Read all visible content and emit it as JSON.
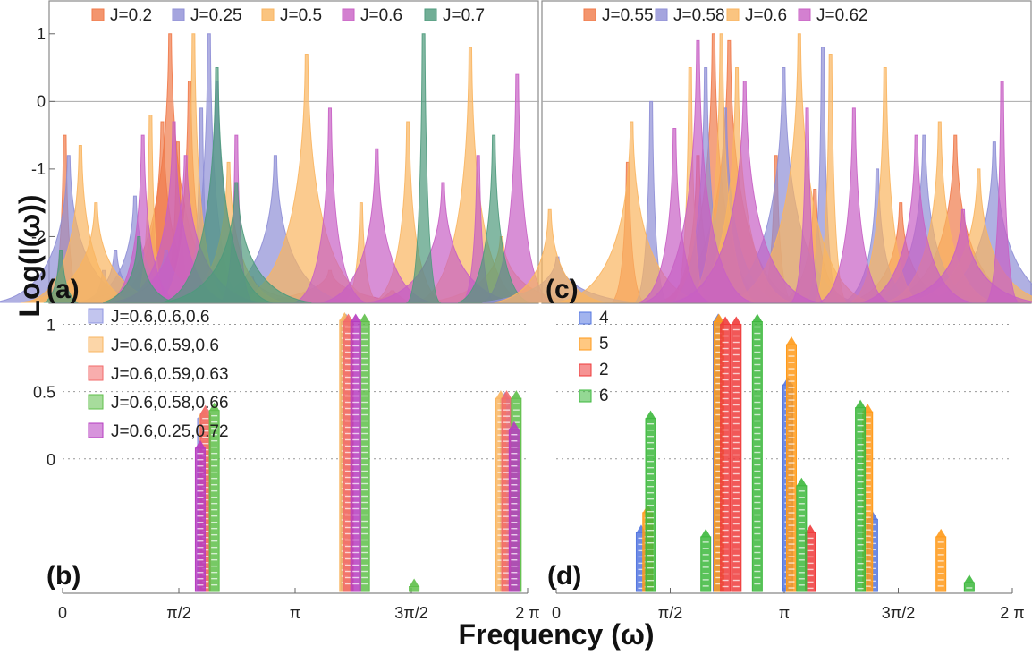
{
  "figure": {
    "ylabel": "Log(I(ω))",
    "xlabel": "Frequency (ω)"
  },
  "chart_data": [
    {
      "panel": "a",
      "type": "area",
      "label": "(a)",
      "xlim": [
        0,
        6.2832
      ],
      "ylim": [
        -3,
        1.5
      ],
      "yticks": [
        "1",
        "0",
        "-1",
        "-2"
      ],
      "ytick_values": [
        1,
        0,
        -1,
        -2
      ],
      "legend": [
        "J=0.2",
        "J=0.25",
        "J=0.5",
        "J=0.6",
        "J=0.7"
      ],
      "series": [
        {
          "name": "J=0.2",
          "color": "#f07a4a",
          "peaks": [
            [
              0.2,
              -0.5
            ],
            [
              0.85,
              -2.8
            ],
            [
              1.45,
              -0.3
            ],
            [
              1.55,
              1.0
            ],
            [
              1.65,
              -0.6
            ],
            [
              1.8,
              0.3
            ],
            [
              2.6,
              -2.6
            ],
            [
              3.6,
              -2.5
            ],
            [
              4.4,
              -2.8
            ]
          ]
        },
        {
          "name": "J=0.25",
          "color": "#8f8fd6",
          "peaks": [
            [
              0.25,
              -0.8
            ],
            [
              0.7,
              -2.5
            ],
            [
              0.85,
              -2.2
            ],
            [
              1.1,
              -1.4
            ],
            [
              1.5,
              -2.2
            ],
            [
              1.95,
              -0.1
            ],
            [
              2.05,
              1.0
            ],
            [
              2.15,
              0.3
            ],
            [
              2.9,
              -0.8
            ]
          ]
        },
        {
          "name": "J=0.5",
          "color": "#f9b560",
          "peaks": [
            [
              0.4,
              -0.65
            ],
            [
              0.6,
              -1.5
            ],
            [
              1.3,
              -0.2
            ],
            [
              1.85,
              1.0
            ],
            [
              2.3,
              -0.9
            ],
            [
              3.3,
              0.7
            ],
            [
              4.0,
              -1.5
            ],
            [
              4.6,
              -0.3
            ],
            [
              5.4,
              0.8
            ],
            [
              5.8,
              -2.0
            ]
          ]
        },
        {
          "name": "J=0.6",
          "color": "#c860c4",
          "peaks": [
            [
              1.2,
              -0.5
            ],
            [
              1.6,
              -0.3
            ],
            [
              1.75,
              -0.8
            ],
            [
              2.4,
              -0.5
            ],
            [
              3.6,
              -0.1
            ],
            [
              4.2,
              -0.7
            ],
            [
              5.05,
              -1.2
            ],
            [
              5.5,
              -0.8
            ],
            [
              6.0,
              0.4
            ]
          ]
        },
        {
          "name": "J=0.7",
          "color": "#4e9a7c",
          "peaks": [
            [
              0.15,
              -2.2
            ],
            [
              1.15,
              -2.0
            ],
            [
              2.15,
              0.5
            ],
            [
              2.4,
              -1.2
            ],
            [
              4.8,
              1.0
            ],
            [
              5.7,
              -0.5
            ]
          ]
        }
      ]
    },
    {
      "panel": "c",
      "type": "area",
      "label": "(c)",
      "xlim": [
        0,
        6.2832
      ],
      "ylim": [
        -3,
        1.5
      ],
      "legend": [
        "J=0.55",
        "J=0.58",
        "J=0.6",
        "J=0.62"
      ],
      "series": [
        {
          "name": "J=0.55",
          "color": "#f07a4a",
          "peaks": [
            [
              1.1,
              -0.9
            ],
            [
              2.0,
              -0.8
            ],
            [
              2.2,
              1.0
            ],
            [
              2.4,
              0.9
            ],
            [
              3.0,
              -0.8
            ],
            [
              3.5,
              -1.3
            ],
            [
              4.6,
              -1.5
            ],
            [
              5.3,
              -0.5
            ]
          ]
        },
        {
          "name": "J=0.58",
          "color": "#8f8fd6",
          "peaks": [
            [
              0.2,
              -2.3
            ],
            [
              1.4,
              0.0
            ],
            [
              2.1,
              0.5
            ],
            [
              2.35,
              -0.1
            ],
            [
              3.1,
              0.5
            ],
            [
              3.6,
              0.8
            ],
            [
              4.3,
              -1.0
            ],
            [
              4.9,
              -0.5
            ],
            [
              5.8,
              -0.6
            ]
          ]
        },
        {
          "name": "J=0.6",
          "color": "#f9b560",
          "peaks": [
            [
              0.1,
              -1.6
            ],
            [
              1.15,
              -0.3
            ],
            [
              1.9,
              0.5
            ],
            [
              2.3,
              1.0
            ],
            [
              2.5,
              0.5
            ],
            [
              3.3,
              1.0
            ],
            [
              3.7,
              0.7
            ],
            [
              4.4,
              0.5
            ],
            [
              5.1,
              -0.3
            ],
            [
              5.6,
              -1.0
            ]
          ]
        },
        {
          "name": "J=0.62",
          "color": "#c860c4",
          "peaks": [
            [
              1.7,
              -0.4
            ],
            [
              2.0,
              0.9
            ],
            [
              2.6,
              0.3
            ],
            [
              3.4,
              -0.1
            ],
            [
              4.0,
              -0.1
            ],
            [
              4.8,
              -0.5
            ],
            [
              5.4,
              -1.6
            ],
            [
              5.9,
              0.3
            ]
          ]
        }
      ]
    },
    {
      "panel": "b",
      "type": "bar",
      "label": "(b)",
      "xlim": [
        0,
        6.2832
      ],
      "ylim": [
        -1.0,
        1.05
      ],
      "yticks": [
        "1",
        "0.5",
        "0"
      ],
      "ytick_values": [
        1,
        0.5,
        0
      ],
      "xticks": [
        "0",
        "π/2",
        "π",
        "3π/2",
        "2 π"
      ],
      "xtick_values": [
        0,
        1.5708,
        3.1416,
        4.7124,
        6.2832
      ],
      "legend": [
        "J=0.6,0.6,0.6",
        "J=0.6,0.59,0.6",
        "J=0.6,0.59,0.63",
        "J=0.6,0.58,0.66",
        "J=0.6,0.25,0.72"
      ],
      "series": [
        {
          "name": "J=0.6,0.6,0.6",
          "color": "#8f95e0",
          "bars": [
            [
              1.89,
              0.3
            ],
            [
              3.83,
              1.02
            ],
            [
              5.98,
              0.44
            ]
          ]
        },
        {
          "name": "J=0.6,0.59,0.6",
          "color": "#f9b560",
          "bars": [
            [
              1.91,
              0.32
            ],
            [
              3.81,
              1.03
            ],
            [
              5.92,
              0.45
            ]
          ]
        },
        {
          "name": "J=0.6,0.59,0.63",
          "color": "#f26a6a",
          "bars": [
            [
              1.93,
              0.34
            ],
            [
              3.86,
              1.02
            ],
            [
              6.0,
              0.45
            ]
          ]
        },
        {
          "name": "J=0.6,0.58,0.66",
          "color": "#5fbf4a",
          "bars": [
            [
              2.05,
              0.36
            ],
            [
              4.08,
              1.02
            ],
            [
              4.75,
              -0.95
            ],
            [
              6.13,
              0.45
            ]
          ]
        },
        {
          "name": "J=0.6,0.25,0.72",
          "color": "#b63cc0",
          "bars": [
            [
              1.86,
              0.08
            ],
            [
              3.96,
              1.02
            ],
            [
              6.1,
              0.22
            ]
          ]
        }
      ]
    },
    {
      "panel": "d",
      "type": "bar",
      "label": "(d)",
      "xlim": [
        0,
        6.2832
      ],
      "ylim": [
        -1.0,
        1.05
      ],
      "xticks": [
        "0",
        "π/2",
        "π",
        "3π/2",
        "2 π"
      ],
      "xtick_values": [
        0,
        1.5708,
        3.1416,
        4.7124,
        6.2832
      ],
      "legend": [
        "4",
        "5",
        "2",
        "6"
      ],
      "series": [
        {
          "name": "4",
          "color": "#5577e0",
          "bars": [
            [
              1.17,
              -0.55
            ],
            [
              2.23,
              1.02
            ],
            [
              3.19,
              0.55
            ],
            [
              4.36,
              -0.45
            ]
          ]
        },
        {
          "name": "5",
          "color": "#ff9a1a",
          "bars": [
            [
              1.26,
              -0.4
            ],
            [
              2.24,
              1.02
            ],
            [
              3.24,
              0.85
            ],
            [
              4.29,
              0.35
            ],
            [
              5.3,
              -0.58
            ]
          ]
        },
        {
          "name": "2",
          "color": "#ef3b3b",
          "bars": [
            [
              2.33,
              1.0
            ],
            [
              2.48,
              1.0
            ],
            [
              3.5,
              -0.55
            ]
          ]
        },
        {
          "name": "6",
          "color": "#3db83d",
          "bars": [
            [
              1.3,
              0.3
            ],
            [
              2.06,
              -0.58
            ],
            [
              2.77,
              1.02
            ],
            [
              3.38,
              -0.2
            ],
            [
              4.19,
              0.38
            ],
            [
              5.69,
              -0.92
            ]
          ]
        }
      ]
    }
  ]
}
